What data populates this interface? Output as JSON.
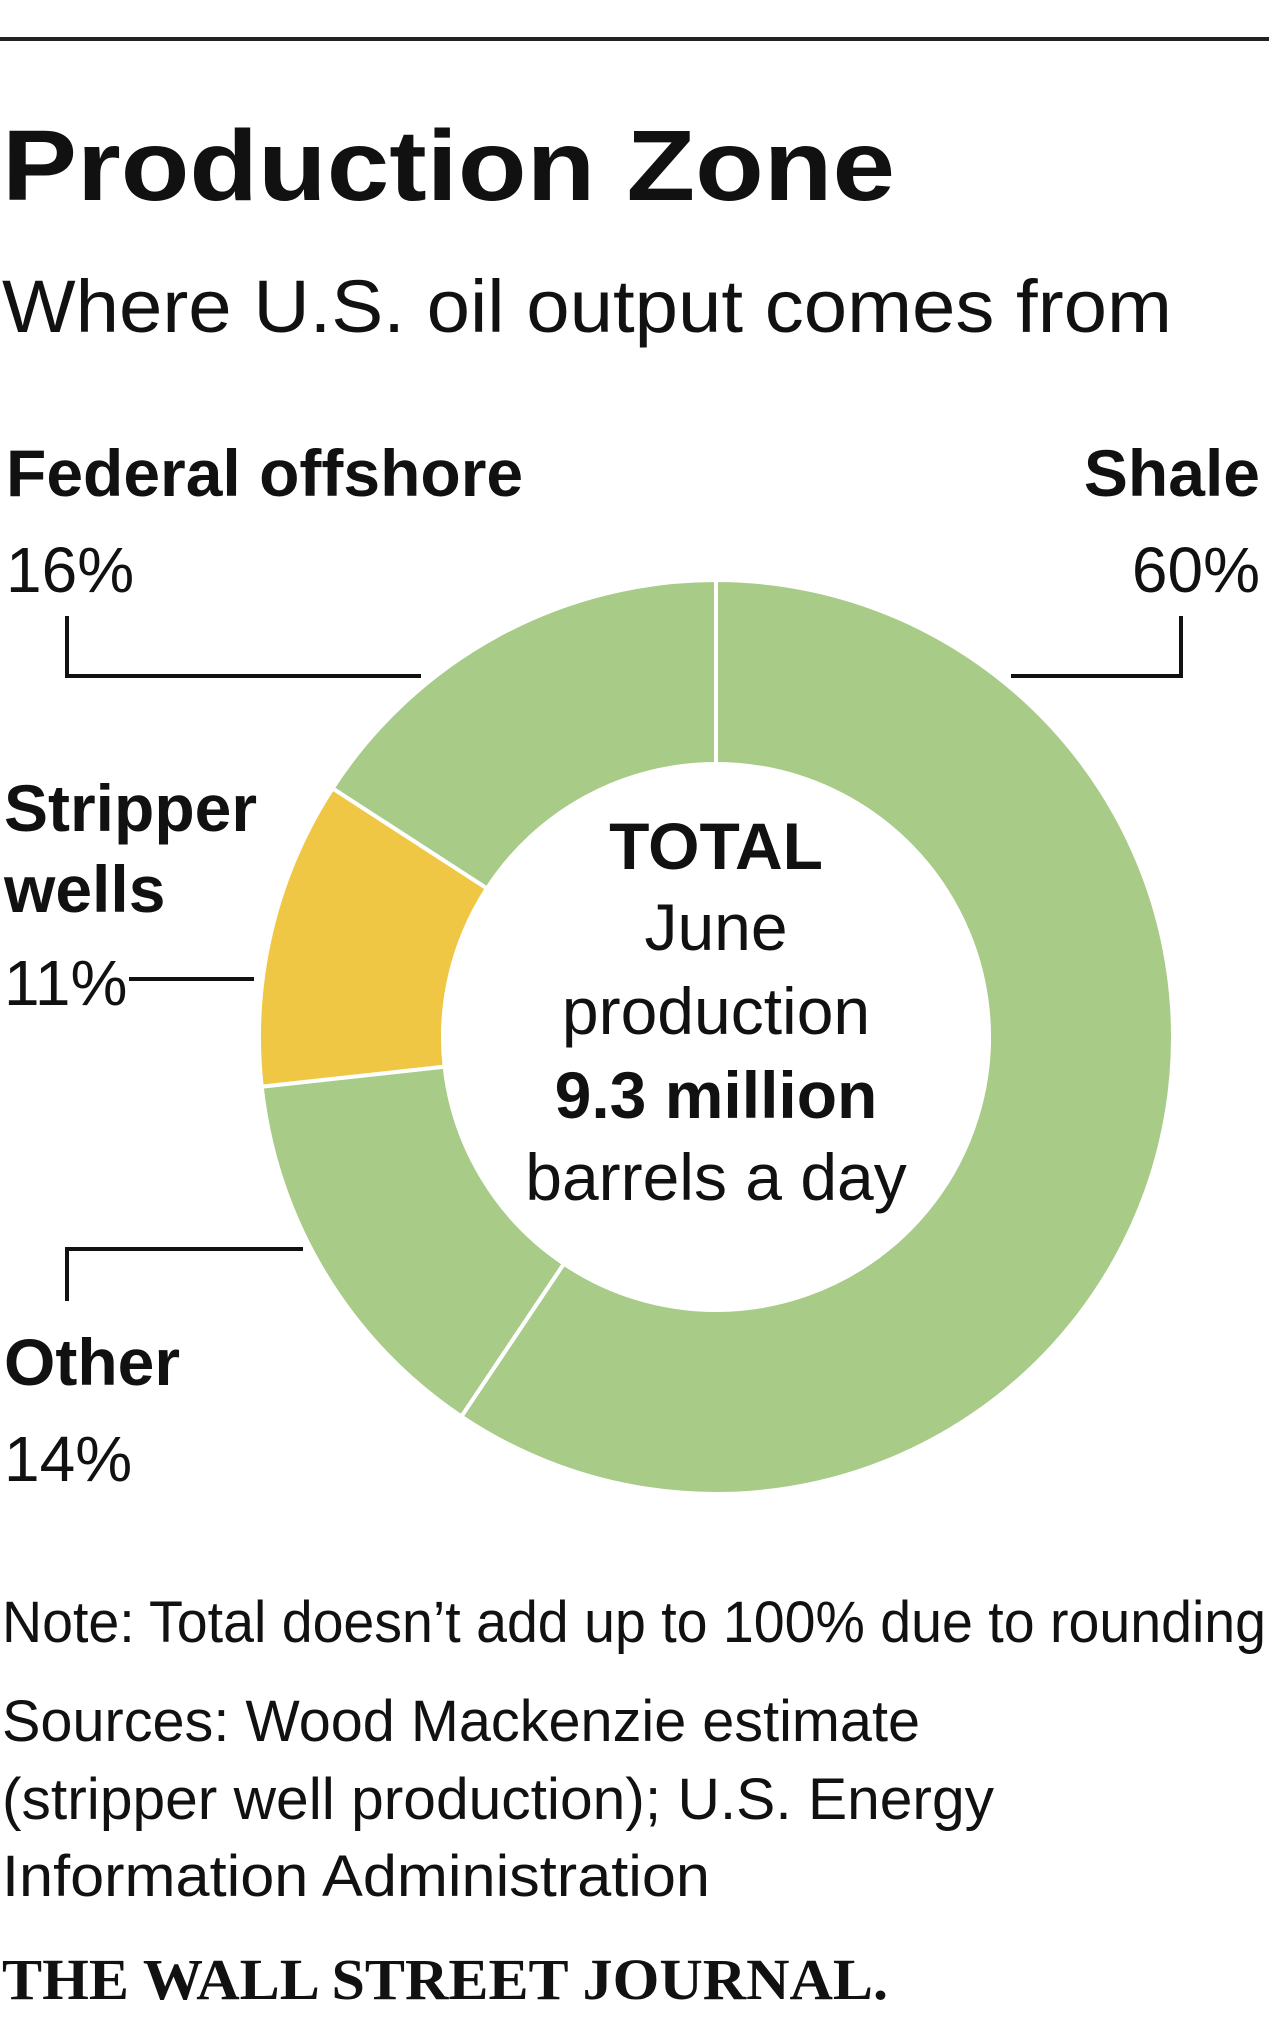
{
  "chart_data": {
    "type": "donut",
    "title": "Production Zone",
    "subtitle": "Where U.S. oil output comes from",
    "categories": [
      "Shale",
      "Other",
      "Stripper wells",
      "Federal offshore"
    ],
    "values": [
      60,
      14,
      11,
      16
    ],
    "value_labels": [
      "60%",
      "14%",
      "11%",
      "16%"
    ],
    "colors": [
      "#a8cb88",
      "#a8cb88",
      "#f0c744",
      "#a8cb88"
    ],
    "center_label": [
      "TOTAL",
      "June",
      "production",
      "9.3 million",
      "barrels a day"
    ],
    "note": "Note: Total doesn’t add up to 100% due to rounding",
    "sources": [
      "Sources: Wood Mackenzie estimate",
      "(stripper well production); U.S. Energy",
      "Information Administration"
    ],
    "credit": "THE WALL STREET JOURNAL."
  }
}
